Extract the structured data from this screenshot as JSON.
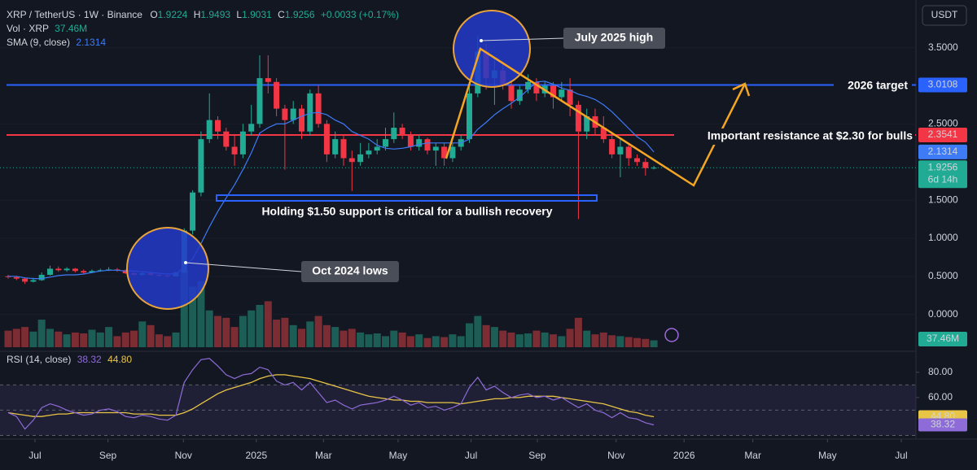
{
  "header": {
    "symbol": "XRP / TetherUS · 1W · Binance",
    "o": "O",
    "h": "H",
    "l": "L",
    "c": "C",
    "change": "+0.0033 (+0.17%)",
    "vol": "Vol · XRP",
    "currency": "USDT"
  },
  "chart_data": {
    "type": "candlestick",
    "ohlc": [
      [
        0.5,
        0.52,
        0.47,
        0.49
      ],
      [
        0.49,
        0.5,
        0.45,
        0.47
      ],
      [
        0.47,
        0.48,
        0.4,
        0.43
      ],
      [
        0.43,
        0.48,
        0.42,
        0.45
      ],
      [
        0.45,
        0.55,
        0.44,
        0.52
      ],
      [
        0.52,
        0.64,
        0.51,
        0.6
      ],
      [
        0.6,
        0.63,
        0.56,
        0.58
      ],
      [
        0.58,
        0.62,
        0.56,
        0.6
      ],
      [
        0.6,
        0.61,
        0.55,
        0.57
      ],
      [
        0.57,
        0.59,
        0.53,
        0.55
      ],
      [
        0.55,
        0.59,
        0.54,
        0.57
      ],
      [
        0.57,
        0.6,
        0.56,
        0.58
      ],
      [
        0.58,
        0.62,
        0.57,
        0.59
      ],
      [
        0.59,
        0.61,
        0.56,
        0.58
      ],
      [
        0.58,
        0.59,
        0.53,
        0.54
      ],
      [
        0.54,
        0.56,
        0.51,
        0.52
      ],
      [
        0.52,
        0.56,
        0.51,
        0.54
      ],
      [
        0.54,
        0.55,
        0.51,
        0.52
      ],
      [
        0.52,
        0.53,
        0.49,
        0.51
      ],
      [
        0.51,
        0.53,
        0.49,
        0.5
      ],
      [
        0.5,
        0.56,
        0.5,
        0.55
      ],
      [
        0.55,
        1.13,
        0.54,
        1.1
      ],
      [
        1.1,
        1.63,
        1.05,
        1.6
      ],
      [
        1.6,
        2.4,
        1.55,
        2.3
      ],
      [
        2.3,
        2.9,
        2.25,
        2.55
      ],
      [
        2.55,
        2.6,
        2.3,
        2.4
      ],
      [
        2.4,
        2.45,
        2.15,
        2.2
      ],
      [
        2.2,
        2.35,
        1.95,
        2.1
      ],
      [
        2.1,
        2.5,
        2.05,
        2.4
      ],
      [
        2.4,
        2.75,
        2.35,
        2.5
      ],
      [
        2.5,
        3.4,
        2.45,
        3.1
      ],
      [
        3.1,
        3.4,
        2.9,
        3.05
      ],
      [
        3.05,
        3.1,
        2.6,
        2.7
      ],
      [
        2.7,
        2.75,
        1.9,
        2.55
      ],
      [
        2.55,
        2.8,
        2.5,
        2.7
      ],
      [
        2.7,
        2.75,
        2.3,
        2.4
      ],
      [
        2.4,
        2.95,
        2.35,
        2.9
      ],
      [
        2.9,
        3.0,
        2.45,
        2.5
      ],
      [
        2.5,
        2.55,
        2.0,
        2.1
      ],
      [
        2.1,
        2.4,
        2.05,
        2.3
      ],
      [
        2.3,
        2.35,
        1.95,
        2.05
      ],
      [
        2.05,
        2.15,
        1.62,
        2.0
      ],
      [
        2.0,
        2.25,
        1.95,
        2.1
      ],
      [
        2.1,
        2.25,
        2.05,
        2.15
      ],
      [
        2.15,
        2.3,
        2.1,
        2.2
      ],
      [
        2.2,
        2.45,
        2.15,
        2.3
      ],
      [
        2.3,
        2.65,
        2.25,
        2.45
      ],
      [
        2.45,
        2.5,
        2.3,
        2.35
      ],
      [
        2.35,
        2.4,
        2.15,
        2.2
      ],
      [
        2.2,
        2.35,
        2.15,
        2.3
      ],
      [
        2.3,
        2.32,
        2.1,
        2.15
      ],
      [
        2.15,
        2.25,
        1.95,
        2.2
      ],
      [
        2.2,
        2.25,
        1.95,
        2.05
      ],
      [
        2.05,
        2.25,
        2.0,
        2.2
      ],
      [
        2.2,
        2.35,
        2.15,
        2.3
      ],
      [
        2.3,
        3.0,
        2.25,
        2.9
      ],
      [
        2.9,
        3.66,
        2.85,
        3.45
      ],
      [
        3.45,
        3.55,
        2.95,
        3.1
      ],
      [
        3.1,
        3.35,
        2.75,
        3.2
      ],
      [
        3.2,
        3.3,
        2.95,
        3.0
      ],
      [
        3.0,
        3.05,
        2.7,
        2.8
      ],
      [
        2.8,
        3.0,
        2.75,
        2.95
      ],
      [
        2.95,
        3.15,
        2.9,
        3.05
      ],
      [
        3.05,
        3.1,
        2.8,
        2.9
      ],
      [
        2.9,
        3.05,
        2.85,
        3.0
      ],
      [
        3.0,
        3.05,
        2.7,
        2.85
      ],
      [
        2.85,
        3.05,
        2.8,
        2.95
      ],
      [
        2.95,
        3.1,
        2.6,
        2.75
      ],
      [
        2.75,
        2.8,
        1.25,
        2.4
      ],
      [
        2.4,
        2.7,
        2.3,
        2.6
      ],
      [
        2.6,
        2.7,
        2.35,
        2.45
      ],
      [
        2.45,
        2.6,
        2.25,
        2.3
      ],
      [
        2.3,
        2.4,
        2.05,
        2.1
      ],
      [
        2.1,
        2.3,
        1.8,
        2.2
      ],
      [
        2.2,
        2.25,
        1.95,
        2.05
      ],
      [
        2.05,
        2.1,
        1.95,
        2.0
      ],
      [
        2.0,
        2.05,
        1.82,
        1.92
      ],
      [
        1.9224,
        1.9493,
        1.9031,
        1.9256
      ]
    ],
    "up_color": "#22ab94",
    "down_color": "#f23645",
    "sma": {
      "name": "SMA (9, close)",
      "color": "#3d7bf7",
      "values": [
        0.5,
        0.5,
        0.48,
        0.47,
        0.47,
        0.49,
        0.51,
        0.52,
        0.52,
        0.53,
        0.55,
        0.57,
        0.58,
        0.58,
        0.57,
        0.57,
        0.56,
        0.55,
        0.54,
        0.53,
        0.53,
        0.62,
        0.73,
        0.93,
        1.15,
        1.35,
        1.53,
        1.7,
        1.9,
        2.12,
        2.38,
        2.45,
        2.5,
        2.5,
        2.55,
        2.6,
        2.64,
        2.65,
        2.62,
        2.55,
        2.5,
        2.4,
        2.35,
        2.3,
        2.22,
        2.18,
        2.17,
        2.18,
        2.2,
        2.23,
        2.25,
        2.25,
        2.25,
        2.25,
        2.25,
        2.3,
        2.43,
        2.52,
        2.62,
        2.7,
        2.77,
        2.85,
        2.95,
        3.05,
        3.06,
        3.02,
        2.97,
        2.94,
        2.89,
        2.86,
        2.82,
        2.75,
        2.66,
        2.55,
        2.44,
        2.33,
        2.26,
        2.1314
      ]
    },
    "volume": {
      "values": [
        90,
        100,
        110,
        85,
        150,
        100,
        85,
        70,
        80,
        75,
        95,
        80,
        110,
        60,
        80,
        90,
        140,
        120,
        70,
        60,
        80,
        420,
        330,
        360,
        200,
        170,
        160,
        110,
        170,
        200,
        230,
        250,
        150,
        160,
        120,
        100,
        140,
        170,
        120,
        110,
        90,
        100,
        80,
        70,
        75,
        60,
        90,
        80,
        60,
        70,
        50,
        60,
        55,
        70,
        60,
        130,
        170,
        120,
        110,
        90,
        80,
        70,
        75,
        90,
        80,
        70,
        60,
        100,
        160,
        90,
        70,
        80,
        65,
        60,
        55,
        50,
        45,
        37.46
      ],
      "last_label": "37.46M",
      "up_color": "#1c5e55",
      "down_color": "#7b2d33"
    },
    "rsi": {
      "name": "RSI (14, close)",
      "color": "#8e6cd8",
      "ma_color": "#e8c547",
      "values": [
        48,
        45,
        35,
        42,
        52,
        55,
        53,
        50,
        48,
        46,
        47,
        50,
        51,
        49,
        45,
        44,
        46,
        45,
        43,
        42,
        46,
        72,
        82,
        90,
        91,
        85,
        78,
        75,
        78,
        79,
        84,
        82,
        73,
        70,
        72,
        66,
        72,
        64,
        56,
        58,
        54,
        51,
        54,
        55,
        56,
        58,
        61,
        58,
        54,
        56,
        52,
        53,
        50,
        52,
        55,
        68,
        76,
        66,
        69,
        64,
        60,
        62,
        63,
        60,
        61,
        58,
        60,
        56,
        52,
        55,
        50,
        48,
        44,
        48,
        44,
        43,
        40,
        38.32
      ],
      "ma": [
        48,
        47,
        46,
        45,
        45,
        46,
        47,
        47,
        48,
        48,
        48,
        48,
        48,
        48,
        48,
        47,
        47,
        47,
        46,
        46,
        46,
        48,
        51,
        55,
        59,
        63,
        66,
        68,
        70,
        72,
        75,
        77,
        78,
        78,
        77,
        76,
        75,
        73,
        71,
        69,
        67,
        65,
        63,
        61,
        60,
        59,
        58,
        58,
        57,
        57,
        56,
        56,
        56,
        56,
        55,
        56,
        57,
        58,
        59,
        59,
        60,
        60,
        61,
        61,
        61,
        61,
        60,
        59,
        58,
        57,
        56,
        55,
        53,
        51,
        49,
        48,
        46,
        44.8
      ],
      "ma_last_label": "44.80",
      "ylim": [
        29,
        96
      ],
      "yticks": [
        {
          "value": 80,
          "label": "80.00"
        },
        {
          "value": 60,
          "label": "60.00"
        }
      ],
      "bands": [
        70,
        50,
        30
      ]
    },
    "xlim": [
      -0.97,
      108.25
    ],
    "xticks": [
      {
        "value": 3.2,
        "label": "Jul"
      },
      {
        "value": 11.9,
        "label": "Sep"
      },
      {
        "value": 20.9,
        "label": "Nov"
      },
      {
        "value": 29.6,
        "label": "2025"
      },
      {
        "value": 37.6,
        "label": "Mar"
      },
      {
        "value": 46.5,
        "label": "May"
      },
      {
        "value": 55.2,
        "label": "Jul"
      },
      {
        "value": 63.1,
        "label": "Sep"
      },
      {
        "value": 72.5,
        "label": "Nov"
      },
      {
        "value": 80.6,
        "label": "2026"
      },
      {
        "value": 88.8,
        "label": "Mar"
      },
      {
        "value": 97.7,
        "label": "May"
      },
      {
        "value": 106.5,
        "label": "Jul"
      }
    ],
    "ylim": [
      -0.43,
      4.04
    ],
    "yticks": [
      {
        "value": 3.5,
        "label": "3.5000"
      },
      {
        "value": 2.5,
        "label": "2.5000"
      },
      {
        "value": 1.5,
        "label": "1.5000"
      },
      {
        "value": 1.0,
        "label": "1.0000"
      },
      {
        "value": 0.5,
        "label": "0.5000"
      },
      {
        "value": 0,
        "label": "0.0000"
      }
    ],
    "hlines": [
      {
        "value": 3.0108,
        "color": "#2962ff"
      },
      {
        "value": 2.3541,
        "color": "#f23645"
      }
    ],
    "countdown": "6d 14h",
    "annotations": {
      "july_high": "July 2025 high",
      "target": "2026 target",
      "resistance": "Important resistance at $2.30 for bulls",
      "support": "Holding $1.50 support is critical for a bullish recovery",
      "oct_lows": "Oct 2024 lows"
    }
  }
}
